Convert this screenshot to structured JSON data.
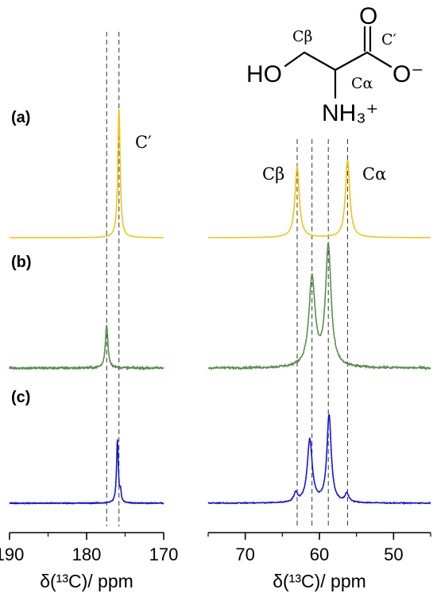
{
  "chart_data": {
    "type": "line",
    "left_panel": {
      "xlim": [
        190,
        170
      ],
      "ticks": [
        190,
        180,
        170
      ],
      "xlabel": "δ(¹³C)/ ppm"
    },
    "right_panel": {
      "xlim": [
        75,
        45
      ],
      "ticks": [
        70,
        60,
        50
      ],
      "xlabel": "δ(¹³C)/ ppm"
    },
    "spectra": [
      {
        "label": "(a)",
        "color": "#f2c318",
        "noise": 0.0,
        "peaks": [
          {
            "ppm": 175.8,
            "height": 1.0,
            "width": 0.18
          },
          {
            "ppm": 63.0,
            "height": 0.55,
            "width": 0.35
          },
          {
            "ppm": 56.2,
            "height": 0.6,
            "width": 0.35
          }
        ]
      },
      {
        "label": "(b)",
        "color": "#5a8f50",
        "noise": 0.018,
        "peaks": [
          {
            "ppm": 177.4,
            "height": 0.35,
            "width": 0.2
          },
          {
            "ppm": 61.0,
            "height": 0.72,
            "width": 0.5
          },
          {
            "ppm": 58.8,
            "height": 0.98,
            "width": 0.45
          }
        ]
      },
      {
        "label": "(c)",
        "color": "#1515dd",
        "noise": 0.012,
        "peaks": [
          {
            "ppm": 176.0,
            "height": 0.72,
            "width": 0.14
          },
          {
            "ppm": 175.6,
            "height": 0.12,
            "width": 0.1
          },
          {
            "ppm": 61.3,
            "height": 0.72,
            "width": 0.4
          },
          {
            "ppm": 58.7,
            "height": 1.0,
            "width": 0.35
          },
          {
            "ppm": 63.2,
            "height": 0.1,
            "width": 0.3
          },
          {
            "ppm": 56.3,
            "height": 0.1,
            "width": 0.3
          }
        ]
      }
    ],
    "reference_lines": {
      "left": [
        177.4,
        175.8
      ],
      "right": [
        63.0,
        61.0,
        58.8,
        56.2
      ]
    },
    "annotations": {
      "c_prime": "C′",
      "c_beta": "Cβ",
      "c_alpha": "Cα"
    },
    "molecule": {
      "ho": "HO",
      "o": "O",
      "o_minus": "O⁻",
      "nh3": "NH₃⁺",
      "c_beta": "Cβ",
      "c_alpha": "Cα",
      "c_prime": "C′"
    }
  }
}
